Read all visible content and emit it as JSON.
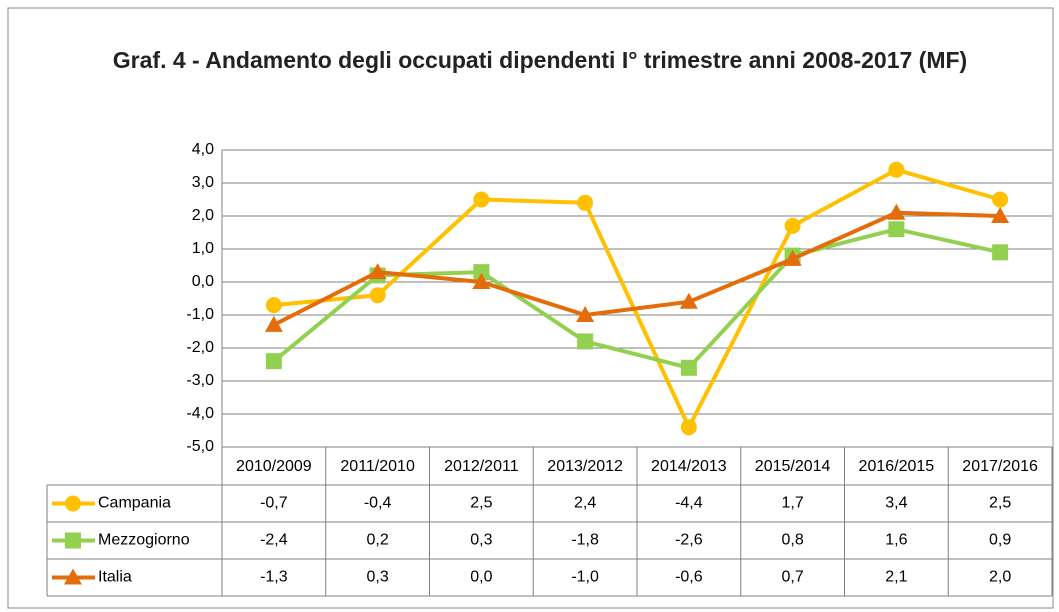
{
  "chart_data": {
    "type": "line",
    "title": "Graf. 4 - Andamento degli occupati dipendenti I° trimestre anni 2008-2017 (MF)",
    "categories": [
      "2010/2009",
      "2011/2010",
      "2012/2011",
      "2013/2012",
      "2014/2013",
      "2015/2014",
      "2016/2015",
      "2017/2016"
    ],
    "series": [
      {
        "name": "Campania",
        "color": "#ffc000",
        "marker": "circle",
        "values": [
          -0.7,
          -0.4,
          2.5,
          2.4,
          -4.4,
          1.7,
          3.4,
          2.5
        ],
        "value_labels": [
          "-0,7",
          "-0,4",
          "2,5",
          "2,4",
          "-4,4",
          "1,7",
          "3,4",
          "2,5"
        ]
      },
      {
        "name": "Mezzogiorno",
        "color": "#92d050",
        "marker": "square",
        "values": [
          -2.4,
          0.2,
          0.3,
          -1.8,
          -2.6,
          0.8,
          1.6,
          0.9
        ],
        "value_labels": [
          "-2,4",
          "0,2",
          "0,3",
          "-1,8",
          "-2,6",
          "0,8",
          "1,6",
          "0,9"
        ]
      },
      {
        "name": "Italia",
        "color": "#e46c0a",
        "marker": "triangle",
        "values": [
          -1.3,
          0.3,
          0.0,
          -1.0,
          -0.6,
          0.7,
          2.1,
          2.0
        ],
        "value_labels": [
          "-1,3",
          "0,3",
          "0,0",
          "-1,0",
          "-0,6",
          "0,7",
          "2,1",
          "2,0"
        ]
      }
    ],
    "ylim": [
      -5,
      4
    ],
    "yticks": [
      {
        "value": -5,
        "label": "-5,0"
      },
      {
        "value": -4,
        "label": "-4,0"
      },
      {
        "value": -3,
        "label": "-3,0"
      },
      {
        "value": -2,
        "label": "-2,0"
      },
      {
        "value": -1,
        "label": "-1,0"
      },
      {
        "value": 0,
        "label": "0,0"
      },
      {
        "value": 1,
        "label": "1,0"
      },
      {
        "value": 2,
        "label": "2,0"
      },
      {
        "value": 3,
        "label": "3,0"
      },
      {
        "value": 4,
        "label": "4,0"
      }
    ],
    "grid": true
  }
}
